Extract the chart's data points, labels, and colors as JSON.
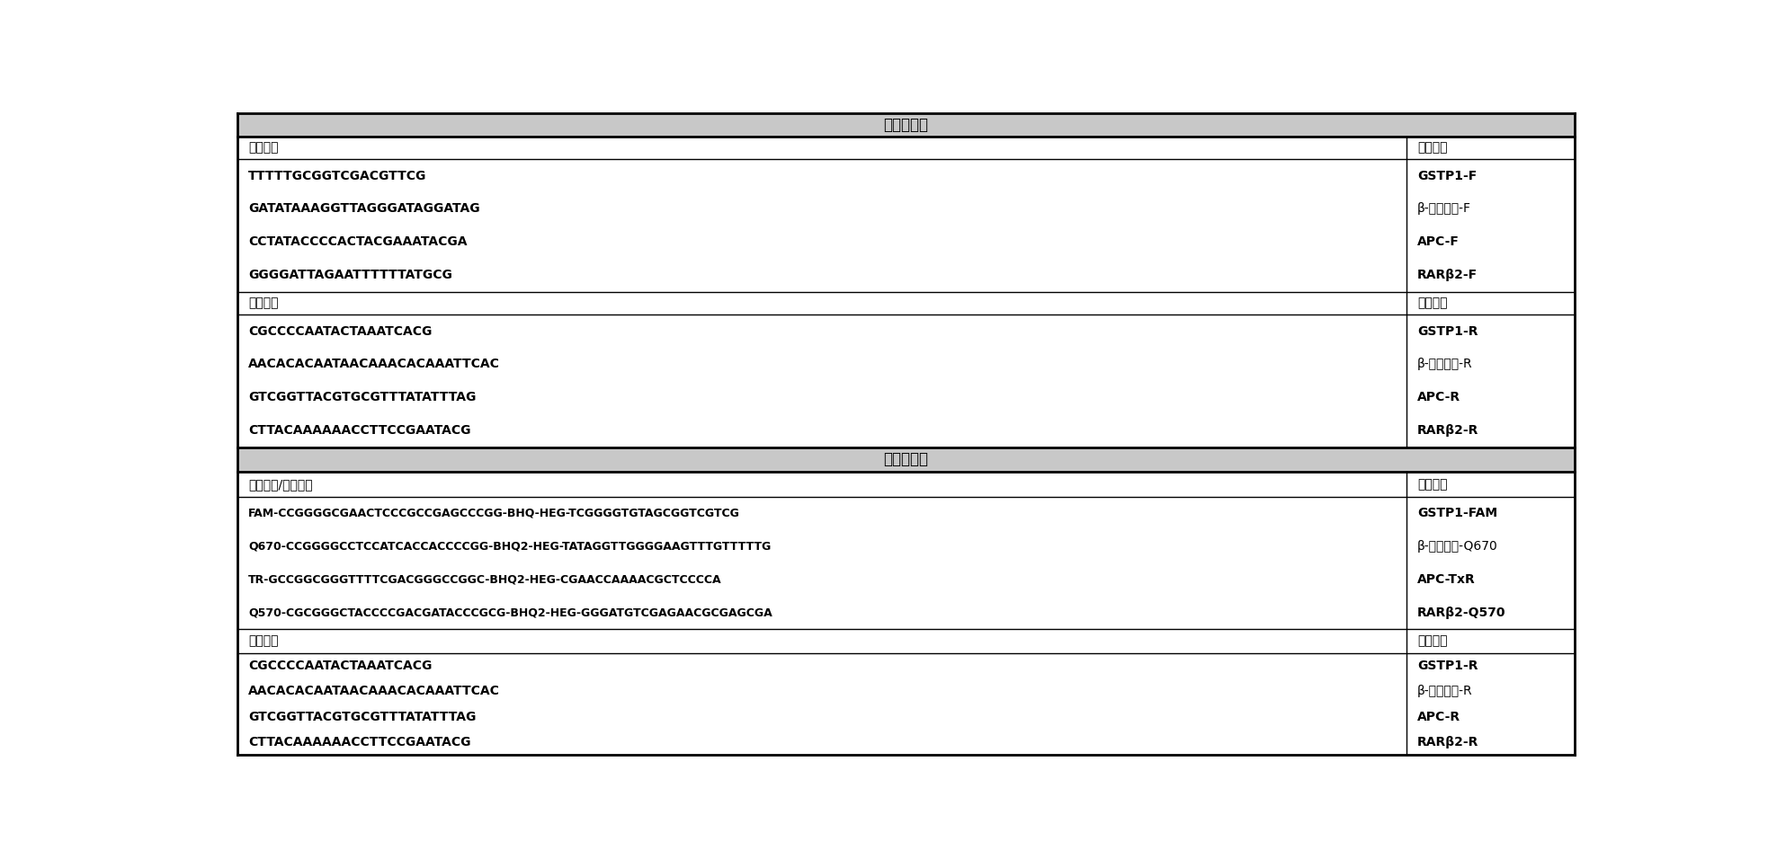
{
  "title1": "扩增混合物",
  "title2": "检测混合物",
  "section1_header_left": "正向引物",
  "section1_header_right": "序列标识",
  "section1_sequences": [
    "TTTTTGCGGTCGACGTTCG",
    "GATATAAAGGTTAGGGATAGGATAG",
    "CCTATACCCCACTACGAAATACGA",
    "GGGGATTAGAATTTTTTATGCG"
  ],
  "section1_ids": [
    "GSTP1-F",
    "β-肌动蛋白-F",
    "APC-F",
    "RARβ2-F"
  ],
  "section1_id_bold": [
    true,
    false,
    true,
    true
  ],
  "section1_seq_bold": [
    true,
    true,
    true,
    true
  ],
  "section2_header_left": "反向引物",
  "section2_header_right": "序列标识",
  "section2_sequences": [
    "CGCCCCAATACTAAATCACG",
    "AACACACAATAACAAACACAAATTCAC",
    "GTCGGTTACGTGCGTTTATATTTAG",
    "CTTACAAAAAACCTTCCGAATACG"
  ],
  "section2_ids": [
    "GSTP1-R",
    "β-肌动蛋白-R",
    "APC-R",
    "RARβ2-R"
  ],
  "section2_id_bold": [
    true,
    false,
    true,
    true
  ],
  "section2_seq_bold": [
    true,
    true,
    true,
    true
  ],
  "section3_header_left": "厘型探针/引物杂交",
  "section3_header_right": "序列标识",
  "section3_sequences": [
    "FAM-CCGGGGCGAACTCCCGCCGAGCCCGG-BHQ-HEG-TCGGGGTGTAGCGGTCGTCG",
    "Q670-CCGGGGCCTCCATCACCACCCCGG-BHQ2-HEG-TATAGGTTGGGGAAGTTTGTTTTTG",
    "TR-GCCGGCGGGTTTTCGACGGGCCGGC-BHQ2-HEG-CGAACCAAAACGCTCCCCA",
    "Q570-CGCGGGCTACCCCGACGATACCCGCG-BHQ2-HEG-GGGATGTCGAGAACGCGAGCGA"
  ],
  "section3_ids": [
    "GSTP1-FAM",
    "β-肌动蛋白-Q670",
    "APC-TxR",
    "RARβ2-Q570"
  ],
  "section3_id_bold": [
    true,
    false,
    true,
    true
  ],
  "section3_seq_bold": [
    true,
    true,
    true,
    true
  ],
  "section4_header_left": "反向引物",
  "section4_header_right": "序列标识",
  "section4_sequences": [
    "CGCCCCAATACTAAATCACG",
    "AACACACAATAACAAACACAAATTCAC",
    "GTCGGTTACGTGCGTTTATATTTAG",
    "CTTACAAAAAACCTTCCGAATACG"
  ],
  "section4_ids": [
    "GSTP1-R",
    "β-肌动蛋白-R",
    "APC-R",
    "RARβ2-R"
  ],
  "section4_id_bold": [
    true,
    false,
    true,
    true
  ],
  "section4_seq_bold": [
    true,
    true,
    true,
    true
  ],
  "bg_color": "#ffffff",
  "header_bg": "#c8c8c8",
  "border_color": "#000000",
  "text_color": "#000000"
}
